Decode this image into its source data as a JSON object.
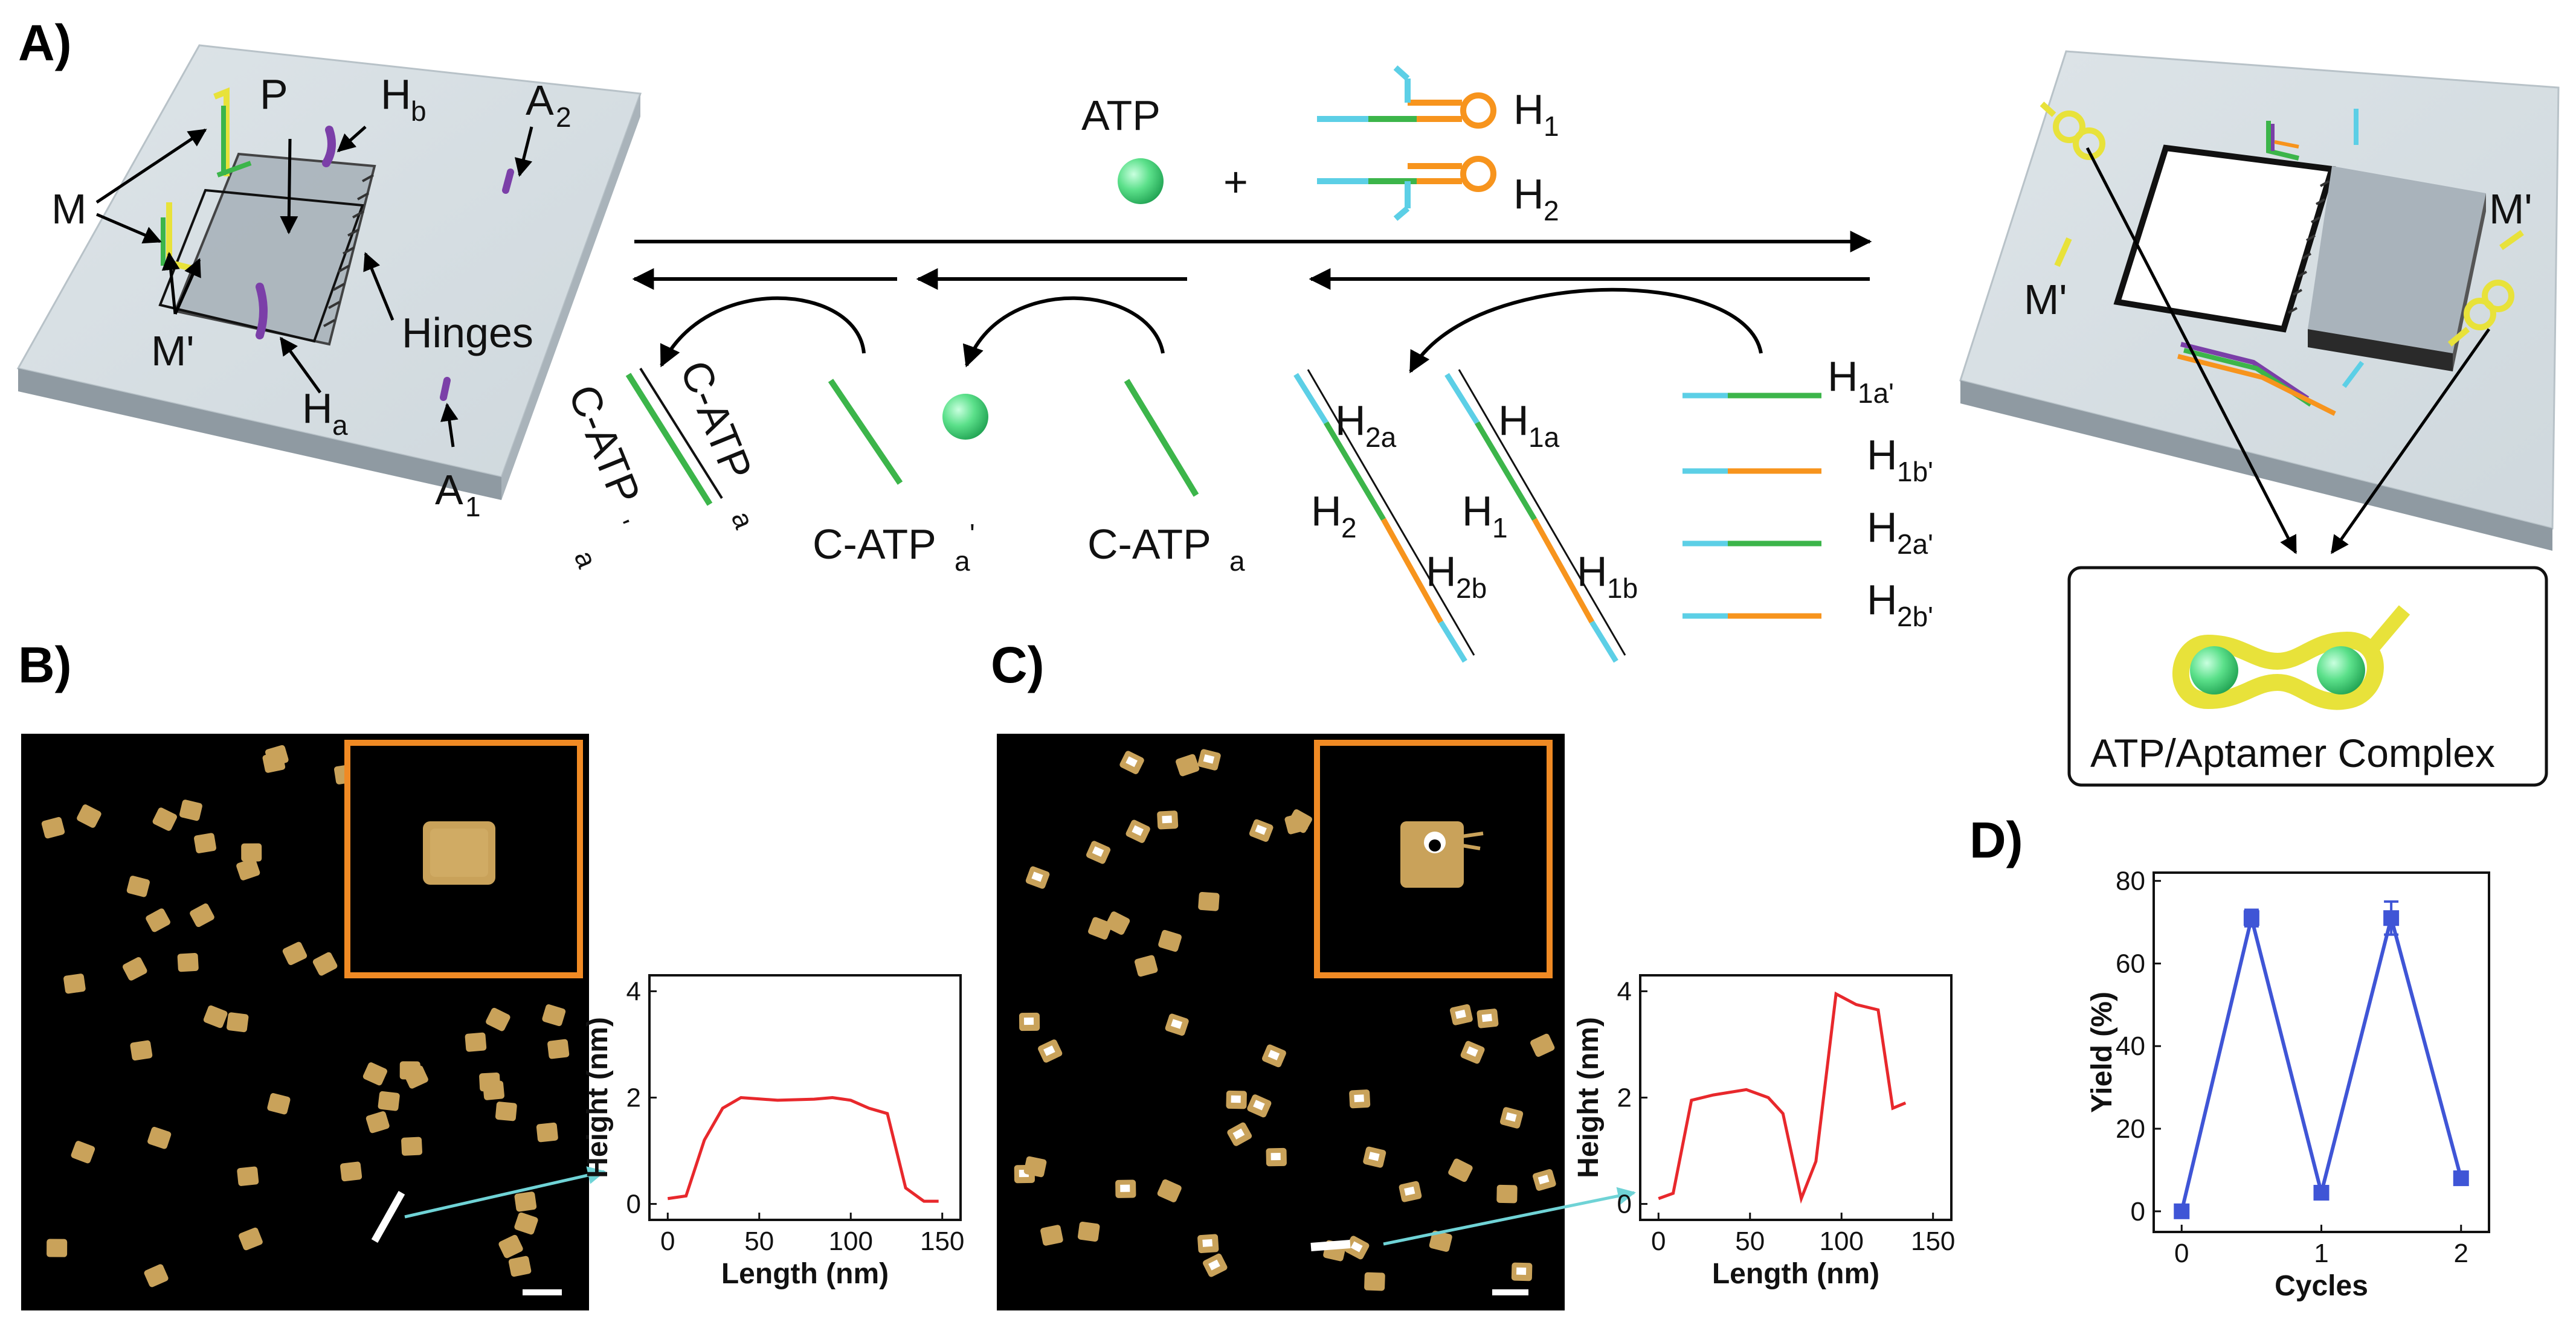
{
  "panel_labels": {
    "a": "A)",
    "b": "B)",
    "c": "C)",
    "d": "D)"
  },
  "panel_a": {
    "origami_labels": {
      "M": "M",
      "P": "P",
      "Hb": "H",
      "Hb_sub": "b",
      "A2": "A",
      "A2_sub": "2",
      "Mprime": "M'",
      "Hinges": "Hinges",
      "Ha": "H",
      "Ha_sub": "a",
      "A1": "A",
      "A1_sub": "1"
    },
    "center": {
      "ATP": "ATP",
      "plus": "+",
      "H1": "H",
      "H1_sub": "1",
      "H2": "H",
      "H2_sub": "2"
    },
    "strands": {
      "cat_pair_left": "C-ATP",
      "cat_pair_left_sub": "a",
      "cat_pair_left_prime": "'",
      "cat_pair_right": "C-ATP",
      "cat_pair_right_sub": "a",
      "c_atp_a_prime": "C-ATP",
      "c_atp_a_prime_sub": "a",
      "prime": "'",
      "c_atp_a": "C-ATP",
      "c_atp_a_sub": "a"
    },
    "hairpin_duplex": {
      "H2a": "H",
      "H2a_sub": "2a",
      "H2": "H",
      "H2_sub": "2",
      "H2b": "H",
      "H2b_sub": "2b",
      "H1a": "H",
      "H1a_sub": "1a",
      "H1": "H",
      "H1_sub": "1",
      "H1b": "H",
      "H1b_sub": "1b"
    },
    "right_strands": [
      {
        "main": "H",
        "sub": "1a",
        "color": "#3cb54a"
      },
      {
        "main": "H",
        "sub": "1b",
        "color": "#f7941d"
      },
      {
        "main": "H",
        "sub": "2a",
        "color": "#3cb54a"
      },
      {
        "main": "H",
        "sub": "2b",
        "color": "#f7941d"
      }
    ],
    "right_origami": {
      "Mprime_top": "M'",
      "Mprime_left": "M'"
    },
    "complex_label": "ATP/Aptamer Complex"
  },
  "colors": {
    "green": "#3cb54a",
    "orange": "#f7941d",
    "cyan": "#5ccfe6",
    "purple": "#7b3fa8",
    "yellow": "#e8e23a",
    "ball": "#5be08a",
    "line_chart": "#3f55d6",
    "profile": "#e8282c",
    "inset_border": "#f08a24",
    "afm_particle": "#c9a25a"
  },
  "panel_b": {
    "profile": {
      "xlabel": "Length (nm)",
      "ylabel": "Height (nm)",
      "xticks": [
        "0",
        "50",
        "100",
        "150"
      ],
      "yticks": [
        "0",
        "2",
        "4"
      ]
    }
  },
  "panel_c": {
    "profile": {
      "xlabel": "Length (nm)",
      "ylabel": "Height (nm)",
      "xticks": [
        "0",
        "50",
        "100",
        "150"
      ],
      "yticks": [
        "0",
        "2",
        "4"
      ]
    }
  },
  "chart_data": [
    {
      "type": "line",
      "panel": "B",
      "xlabel": "Length (nm)",
      "ylabel": "Height (nm)",
      "xlim": [
        -10,
        160
      ],
      "ylim": [
        -0.3,
        4.3
      ],
      "x": [
        0,
        10,
        20,
        30,
        40,
        60,
        80,
        90,
        100,
        110,
        120,
        130,
        140,
        148
      ],
      "y": [
        0.1,
        0.15,
        1.2,
        1.8,
        2.0,
        1.95,
        1.97,
        2.0,
        1.95,
        1.8,
        1.7,
        0.3,
        0.05,
        0.05
      ]
    },
    {
      "type": "line",
      "panel": "C",
      "xlabel": "Length (nm)",
      "ylabel": "Height (nm)",
      "xlim": [
        -10,
        160
      ],
      "ylim": [
        -0.3,
        4.3
      ],
      "x": [
        0,
        8,
        18,
        30,
        48,
        60,
        68,
        78,
        86,
        97,
        108,
        120,
        128,
        135
      ],
      "y": [
        0.1,
        0.2,
        1.95,
        2.05,
        2.15,
        2.0,
        1.7,
        0.1,
        0.8,
        3.95,
        3.75,
        3.65,
        1.8,
        1.9
      ]
    },
    {
      "type": "line",
      "panel": "D",
      "xlabel": "Cycles",
      "ylabel": "Yield (%)",
      "xlim": [
        -0.2,
        2.2
      ],
      "ylim": [
        -5,
        82
      ],
      "xticks": [
        "0",
        "1",
        "2"
      ],
      "yticks": [
        "0",
        "20",
        "40",
        "60",
        "80"
      ],
      "x": [
        0,
        0.5,
        1,
        1.5,
        2
      ],
      "y": [
        0,
        71,
        4.5,
        71,
        8
      ],
      "err": [
        0.8,
        2,
        1.5,
        4,
        1.5
      ]
    }
  ]
}
